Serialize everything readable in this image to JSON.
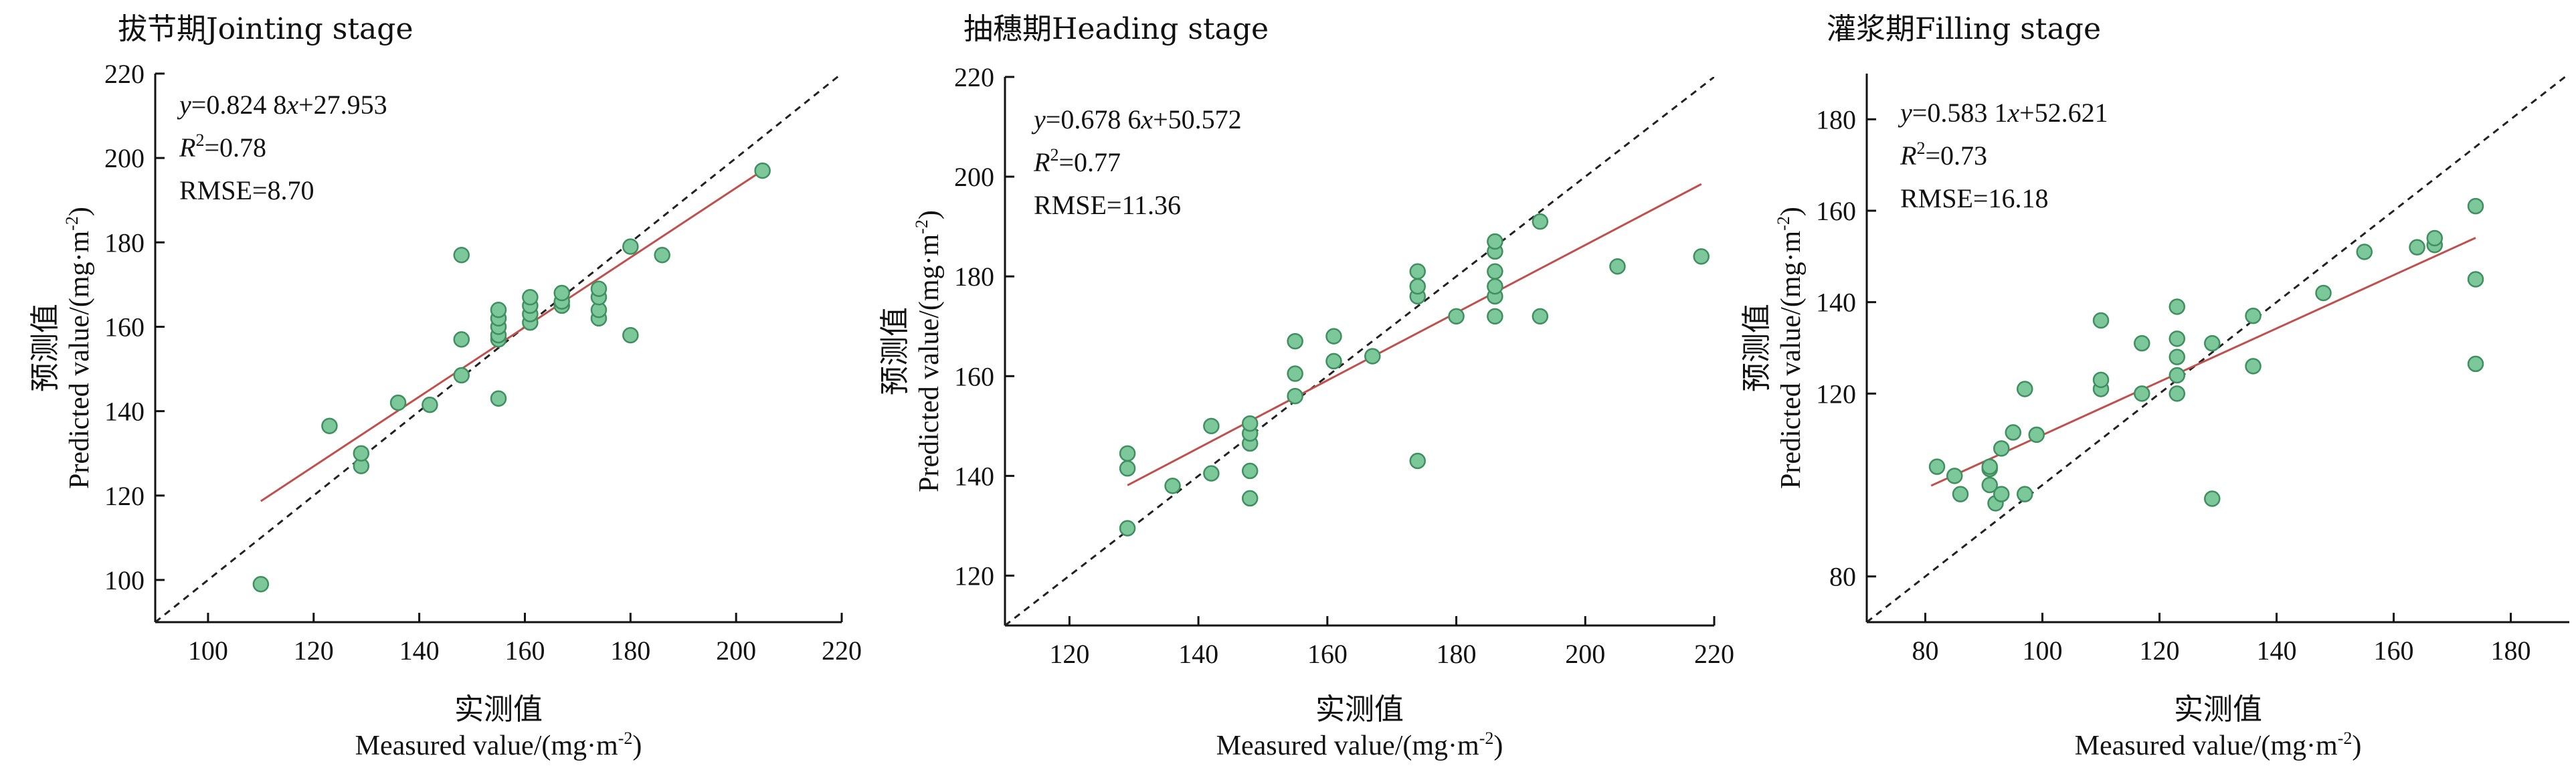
{
  "chart_data": [
    {
      "type": "scatter",
      "title": "拔节期Jointing stage",
      "xlabel_cn": "实测值",
      "xlabel_en": "Measured value/(mg·m⁻²)",
      "ylabel_cn": "预测值",
      "ylabel_en": "Predicted value/(mg·m⁻²)",
      "xlim": [
        90,
        220
      ],
      "ylim": [
        90,
        220
      ],
      "xticks": [
        100,
        120,
        140,
        160,
        180,
        200,
        220
      ],
      "yticks": [
        100,
        120,
        140,
        160,
        180,
        200,
        220
      ],
      "equation": "y=0.824 8x+27.953",
      "r2": "R²=0.78",
      "rmse": "RMSE=8.70",
      "fit": {
        "slope": 0.8248,
        "intercept": 27.953,
        "x_range": [
          110,
          205
        ]
      },
      "reference_line": "1:1",
      "colors": {
        "point_fill": "#7cc89a",
        "point_edge": "#3f8f5f",
        "fit_line": "#c0504d",
        "reference_line": "#222222"
      },
      "points": [
        [
          110,
          99
        ],
        [
          123,
          136.5
        ],
        [
          129,
          127
        ],
        [
          129,
          130
        ],
        [
          136,
          142
        ],
        [
          142,
          141.5
        ],
        [
          148,
          148.5
        ],
        [
          148,
          157
        ],
        [
          148,
          177
        ],
        [
          155,
          143
        ],
        [
          155,
          157
        ],
        [
          155,
          158
        ],
        [
          155,
          160
        ],
        [
          155,
          162
        ],
        [
          155,
          164
        ],
        [
          161,
          161
        ],
        [
          161,
          163
        ],
        [
          161,
          165
        ],
        [
          161,
          167
        ],
        [
          167,
          165
        ],
        [
          167,
          166
        ],
        [
          167,
          168
        ],
        [
          174,
          162
        ],
        [
          174,
          164
        ],
        [
          174,
          167
        ],
        [
          174,
          169
        ],
        [
          180,
          158
        ],
        [
          180,
          179
        ],
        [
          186,
          177
        ],
        [
          205,
          197
        ]
      ]
    },
    {
      "type": "scatter",
      "title": "抽穗期Heading stage",
      "xlabel_cn": "实测值",
      "xlabel_en": "Measured value/(mg·m⁻²)",
      "ylabel_cn": "预测值",
      "ylabel_en": "Predicted value/(mg·m⁻²)",
      "xlim": [
        110,
        220
      ],
      "ylim": [
        110,
        220
      ],
      "xticks": [
        120,
        140,
        160,
        180,
        200,
        220
      ],
      "yticks": [
        120,
        140,
        160,
        180,
        200,
        220
      ],
      "equation": "y=0.678 6x+50.572",
      "r2": "R²=0.77",
      "rmse": "RMSE=11.36",
      "fit": {
        "slope": 0.6786,
        "intercept": 50.572,
        "x_range": [
          129,
          218
        ]
      },
      "reference_line": "1:1",
      "colors": {
        "point_fill": "#7cc89a",
        "point_edge": "#3f8f5f",
        "fit_line": "#c0504d",
        "reference_line": "#222222"
      },
      "points": [
        [
          129,
          129.5
        ],
        [
          129,
          141.5
        ],
        [
          129,
          144.5
        ],
        [
          136,
          138
        ],
        [
          142,
          140.5
        ],
        [
          142,
          150
        ],
        [
          148,
          135.5
        ],
        [
          148,
          141
        ],
        [
          148,
          146.5
        ],
        [
          148,
          148.5
        ],
        [
          148,
          150.5
        ],
        [
          155,
          156
        ],
        [
          155,
          160.5
        ],
        [
          155,
          167
        ],
        [
          161,
          163
        ],
        [
          161,
          168
        ],
        [
          167,
          164
        ],
        [
          174,
          143
        ],
        [
          174,
          176
        ],
        [
          174,
          178
        ],
        [
          174,
          181
        ],
        [
          180,
          172
        ],
        [
          186,
          172
        ],
        [
          186,
          176
        ],
        [
          186,
          178
        ],
        [
          186,
          181
        ],
        [
          186,
          185
        ],
        [
          186,
          187
        ],
        [
          193,
          172
        ],
        [
          193,
          191
        ],
        [
          205,
          182
        ],
        [
          218,
          184
        ]
      ]
    },
    {
      "type": "scatter",
      "title": "灌浆期Filling stage",
      "xlabel_cn": "实测值",
      "xlabel_en": "Measured value/(mg·m⁻²)",
      "ylabel_cn": "预测值",
      "ylabel_en": "Predicted value/(mg·m⁻²)",
      "xlim": [
        70,
        190
      ],
      "ylim": [
        70,
        190
      ],
      "xticks": [
        80,
        100,
        120,
        140,
        160,
        180
      ],
      "yticks": [
        80,
        120,
        140,
        160,
        180
      ],
      "equation": "y=0.583 1x+52.621",
      "r2": "R²=0.73",
      "rmse": "RMSE=16.18",
      "fit": {
        "slope": 0.5831,
        "intercept": 52.621,
        "x_range": [
          81,
          174
        ]
      },
      "reference_line": "1:1",
      "colors": {
        "point_fill": "#7cc89a",
        "point_edge": "#3f8f5f",
        "fit_line": "#c0504d",
        "reference_line": "#222222"
      },
      "points": [
        [
          82,
          104
        ],
        [
          85,
          102
        ],
        [
          86,
          98
        ],
        [
          91,
          100
        ],
        [
          91,
          103.5
        ],
        [
          91,
          104
        ],
        [
          92,
          96
        ],
        [
          93,
          98
        ],
        [
          93,
          108
        ],
        [
          95,
          111.5
        ],
        [
          97,
          98
        ],
        [
          97,
          121
        ],
        [
          99,
          111
        ],
        [
          110,
          121
        ],
        [
          110,
          123
        ],
        [
          110,
          136
        ],
        [
          117,
          120
        ],
        [
          117,
          131
        ],
        [
          123,
          120
        ],
        [
          123,
          124
        ],
        [
          123,
          128
        ],
        [
          123,
          132
        ],
        [
          123,
          139
        ],
        [
          129,
          97
        ],
        [
          129,
          131
        ],
        [
          136,
          126
        ],
        [
          136,
          137
        ],
        [
          148,
          142
        ],
        [
          155,
          151
        ],
        [
          164,
          152
        ],
        [
          167,
          152.5
        ],
        [
          167,
          154
        ],
        [
          174,
          126.5
        ],
        [
          174,
          145
        ],
        [
          174,
          161
        ]
      ]
    }
  ]
}
